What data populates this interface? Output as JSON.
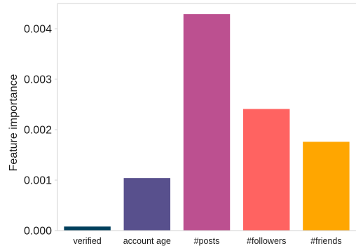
{
  "chart_data": {
    "type": "bar",
    "title": "",
    "xlabel": "",
    "ylabel": "Feature importance",
    "categories": [
      "verified",
      "account age",
      "#posts",
      "#followers",
      "#friends"
    ],
    "values": [
      8e-05,
      0.00104,
      0.00429,
      0.00241,
      0.00176
    ],
    "colors": [
      "#003f5c",
      "#58508d",
      "#bc5090",
      "#ff6361",
      "#ffa600"
    ],
    "ylim": [
      0,
      0.0045
    ],
    "yticks": [
      0,
      0.001,
      0.002,
      0.003,
      0.004
    ],
    "ytick_labels": [
      "0.000",
      "0.001",
      "0.002",
      "0.003",
      "0.004"
    ],
    "grid": false,
    "legend": "none"
  }
}
